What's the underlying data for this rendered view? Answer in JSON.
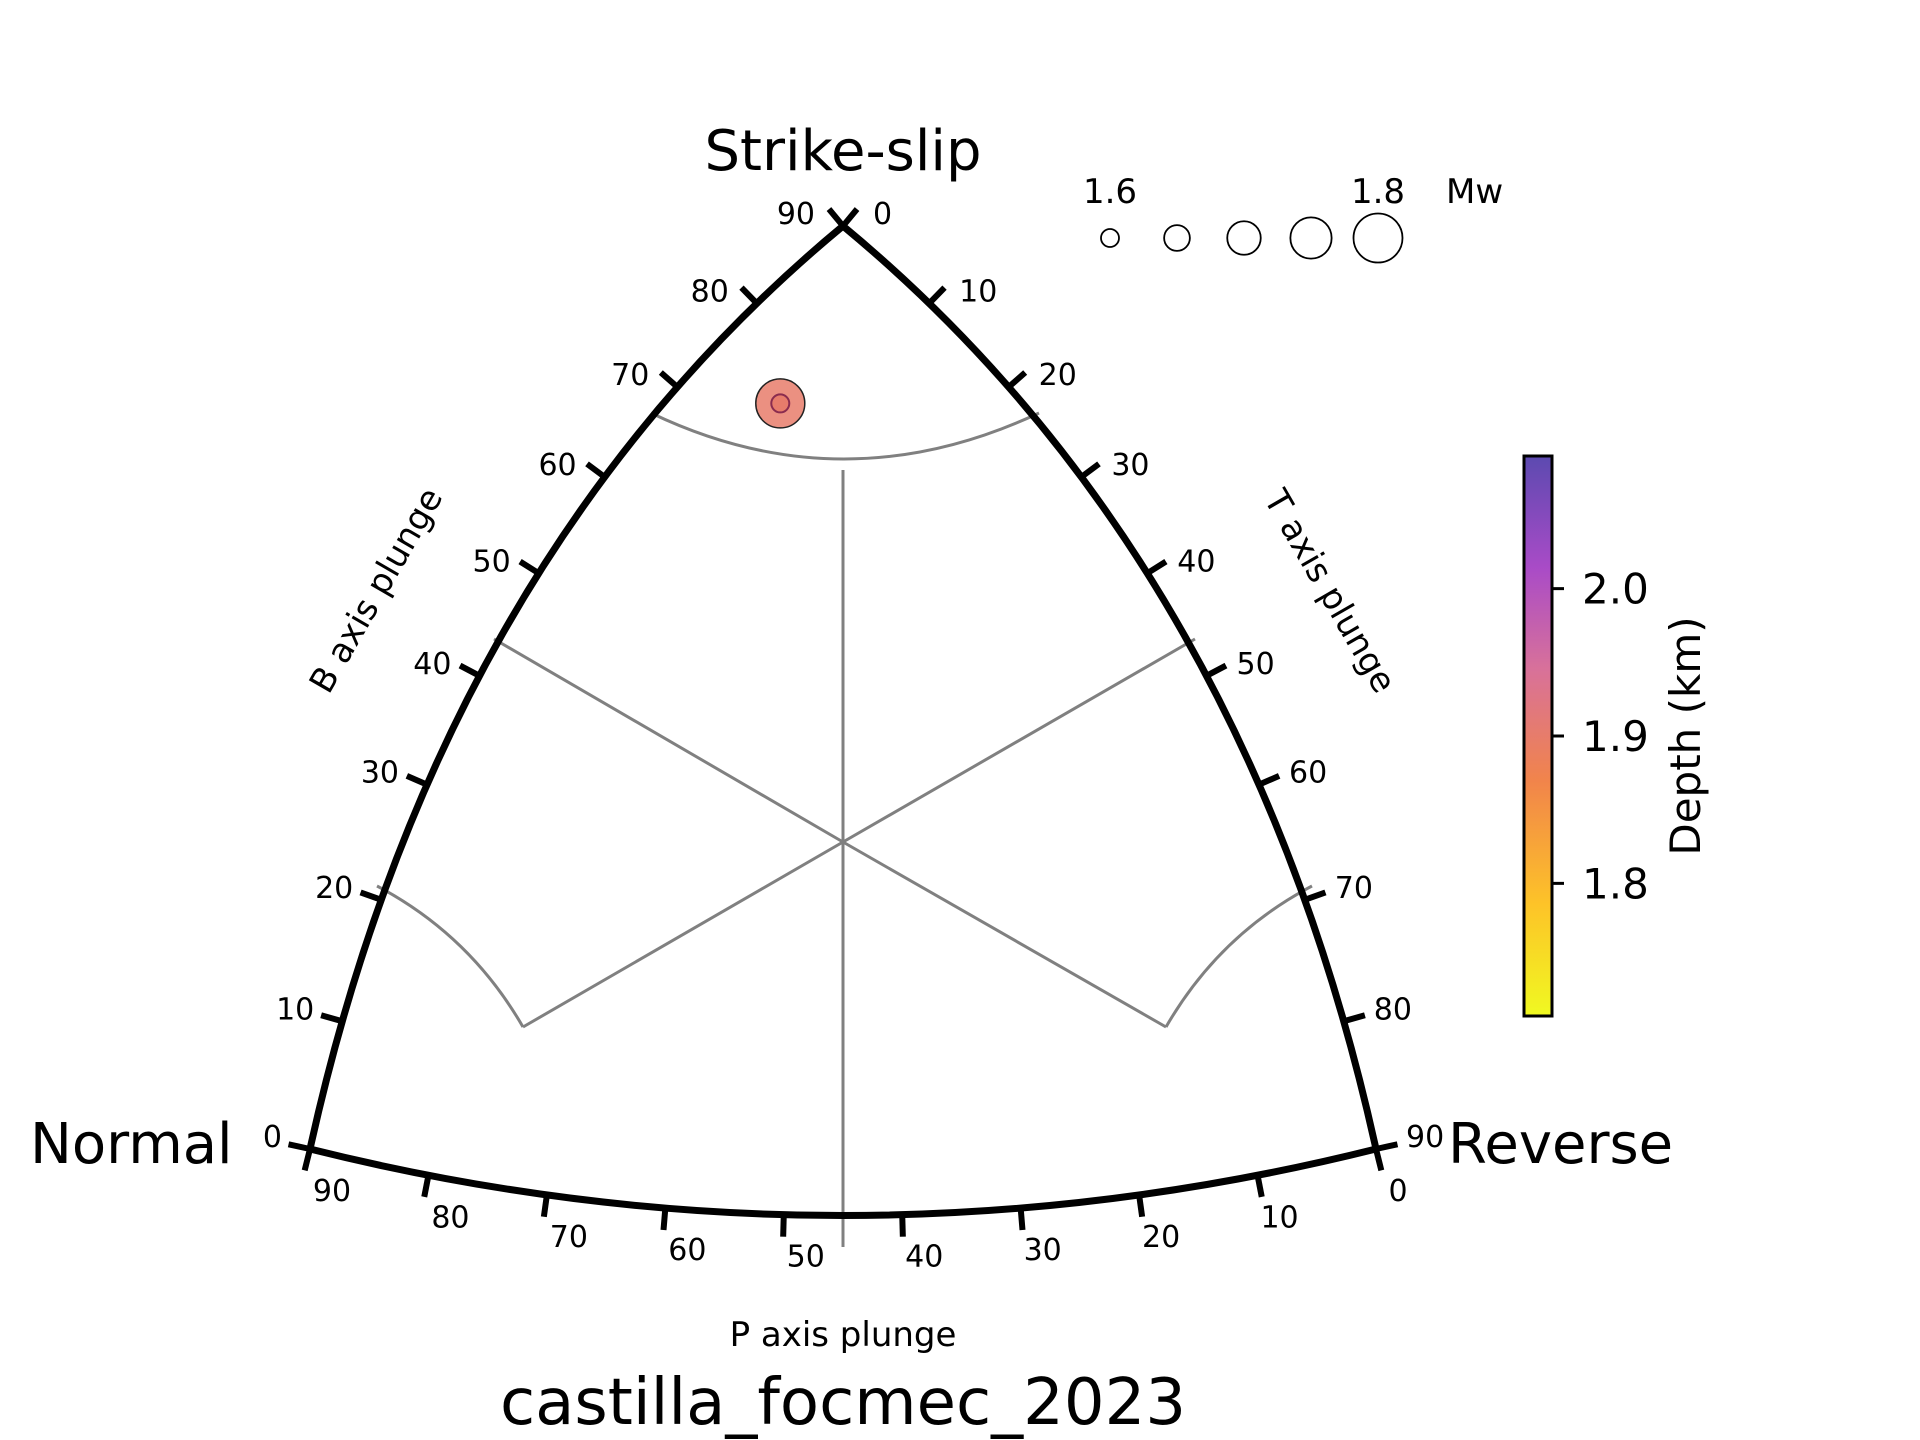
{
  "chart_data": {
    "type": "scatter",
    "subtype": "kaverina-ternary-diagram",
    "title": "castilla_focmec_2023",
    "vertices": {
      "top": "Strike-slip",
      "left": "Normal",
      "right": "Reverse"
    },
    "axes": {
      "b": {
        "label": "B axis plunge",
        "ticks": [
          "0",
          "10",
          "20",
          "30",
          "40",
          "50",
          "60",
          "70",
          "80",
          "90"
        ]
      },
      "t": {
        "label": "T axis plunge",
        "ticks": [
          "0",
          "10",
          "20",
          "30",
          "40",
          "50",
          "60",
          "70",
          "80",
          "90"
        ]
      },
      "p": {
        "label": "P axis plunge",
        "ticks": [
          "0",
          "10",
          "20",
          "30",
          "40",
          "50",
          "60",
          "70",
          "80",
          "90"
        ]
      }
    },
    "grid": true,
    "points": [
      {
        "b_plunge": 57,
        "p_plunge": 24,
        "t_plunge": 14,
        "mw": 1.8,
        "depth_km": 1.9
      }
    ],
    "size_legend": {
      "label": "Mw",
      "labels": [
        "1.6",
        "1.8"
      ],
      "values": [
        1.6,
        1.65,
        1.7,
        1.75,
        1.8
      ],
      "placement": "top-right"
    },
    "colorbar": {
      "label": "Depth (km)",
      "ticks": [
        "1.8",
        "1.9",
        "2.0"
      ],
      "range": [
        1.71,
        2.09
      ],
      "colormap": "plasma_r",
      "placement": "right"
    }
  },
  "colors": {
    "frame": "#000000",
    "grid": "#808080",
    "marker_fill": "#dd6a9a",
    "marker_edge": "#222222",
    "colorbar_low": "#f0f921",
    "colorbar_high": "#5c4ab0"
  }
}
